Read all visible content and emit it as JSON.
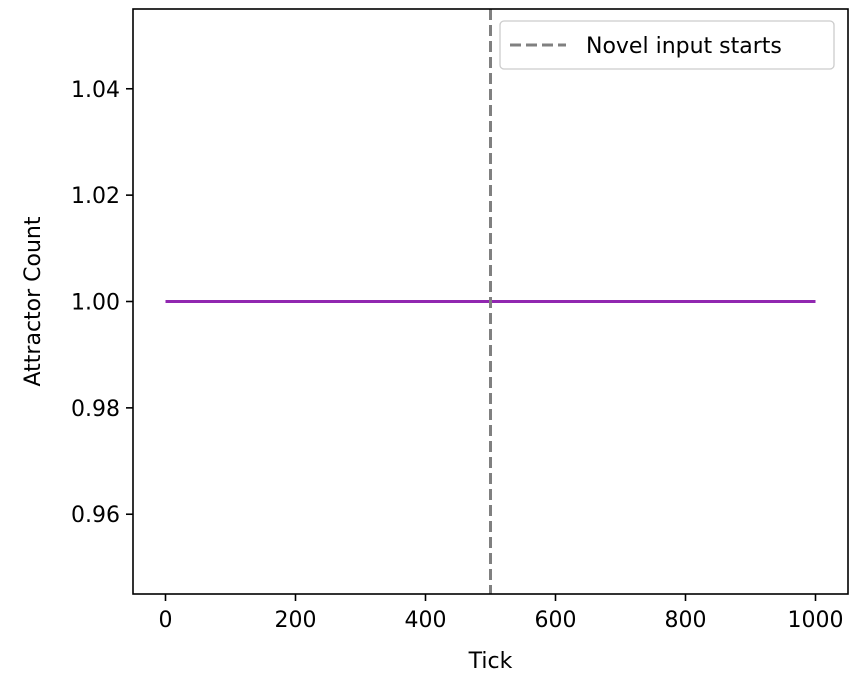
{
  "chart_data": {
    "type": "line",
    "title": "",
    "xlabel": "Tick",
    "ylabel": "Attractor Count",
    "xlim": [
      -50,
      1050
    ],
    "ylim": [
      0.945,
      1.055
    ],
    "xticks": [
      0,
      200,
      400,
      600,
      800,
      1000
    ],
    "xtick_labels": [
      "0",
      "200",
      "400",
      "600",
      "800",
      "1000"
    ],
    "yticks": [
      0.96,
      0.98,
      1.0,
      1.02,
      1.04
    ],
    "ytick_labels": [
      "0.96",
      "0.98",
      "1.00",
      "1.02",
      "1.04"
    ],
    "grid": false,
    "series": [
      {
        "x": [
          0,
          1000
        ],
        "y": [
          1.0,
          1.0
        ],
        "color": "#9127b0"
      }
    ],
    "vlines": [
      {
        "x": 500,
        "label": "Novel input starts",
        "color": "#808080",
        "style": "dashed"
      }
    ],
    "legend": {
      "position": "top-right",
      "entries": [
        "Novel input starts"
      ]
    }
  }
}
